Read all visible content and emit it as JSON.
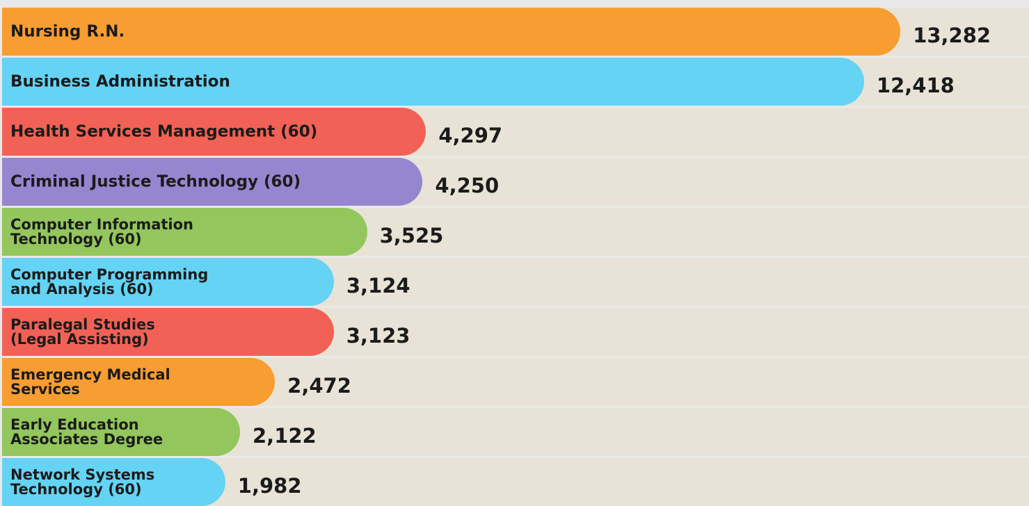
{
  "chart_data": {
    "type": "bar",
    "categories": [
      "Nursing R.N.",
      "Business Administration",
      "Health Services Management (60)",
      "Criminal Justice Technology (60)",
      "Computer Information\nTechnology (60)",
      "Computer Programming\nand Analysis (60)",
      "Paralegal Studies\n(Legal Assisting)",
      "Emergency Medical\nServices",
      "Early Education\nAssociates Degree",
      "Network Systems\nTechnology (60)"
    ],
    "values": [
      13282,
      12418,
      4297,
      4250,
      3525,
      3124,
      3123,
      2472,
      2122,
      1982
    ],
    "value_labels": [
      "13,282",
      "12,418",
      "4,297",
      "4,250",
      "3,525",
      "3,124",
      "3,123",
      "2,472",
      "2,122",
      "1,982"
    ],
    "colors": [
      "#f89d31",
      "#64d3f4",
      "#f26155",
      "#9686cf",
      "#93c65c",
      "#64d3f4",
      "#f26155",
      "#f89d31",
      "#93c65c",
      "#64d3f4"
    ]
  }
}
